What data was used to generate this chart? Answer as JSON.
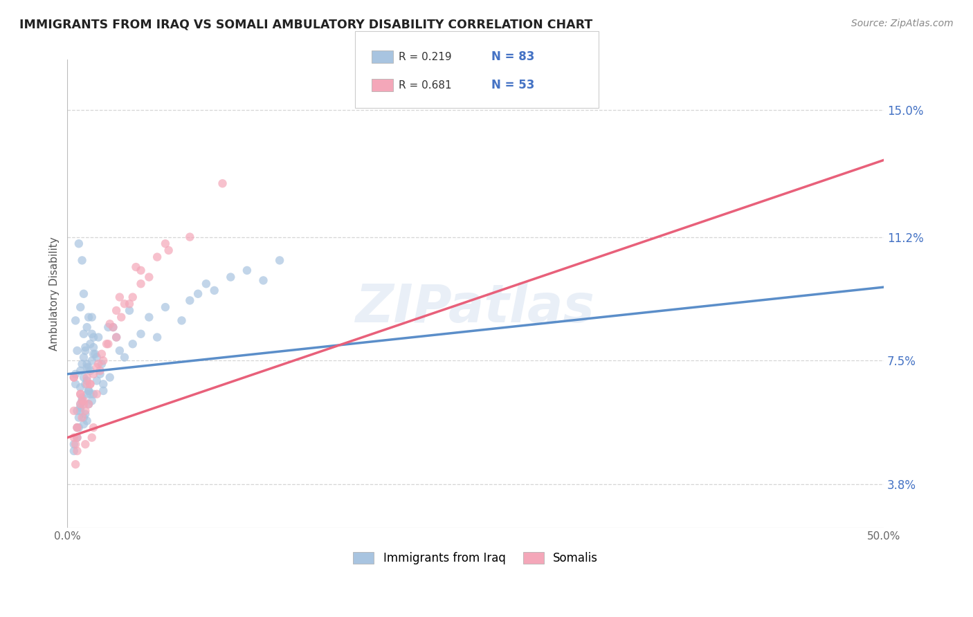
{
  "title": "IMMIGRANTS FROM IRAQ VS SOMALI AMBULATORY DISABILITY CORRELATION CHART",
  "source_text": "Source: ZipAtlas.com",
  "ylabel": "Ambulatory Disability",
  "xlim": [
    0.0,
    0.5
  ],
  "ylim": [
    0.025,
    0.165
  ],
  "ytick_values": [
    0.038,
    0.075,
    0.112,
    0.15
  ],
  "ytick_labels": [
    "3.8%",
    "7.5%",
    "11.2%",
    "15.0%"
  ],
  "iraq_color": "#a8c4e0",
  "somali_color": "#f4a7b9",
  "iraq_line_color": "#5b8ec9",
  "somali_line_color": "#e8607a",
  "iraq_R": 0.219,
  "iraq_N": 83,
  "somali_R": 0.681,
  "somali_N": 53,
  "background_color": "#ffffff",
  "grid_color": "#cccccc",
  "watermark_text": "ZIPatlas",
  "iraq_scatter_x": [
    0.005,
    0.008,
    0.01,
    0.012,
    0.015,
    0.008,
    0.006,
    0.01,
    0.012,
    0.014,
    0.007,
    0.009,
    0.011,
    0.013,
    0.016,
    0.018,
    0.01,
    0.007,
    0.005,
    0.012,
    0.015,
    0.009,
    0.011,
    0.013,
    0.008,
    0.014,
    0.006,
    0.01,
    0.012,
    0.016,
    0.007,
    0.005,
    0.009,
    0.013,
    0.011,
    0.008,
    0.02,
    0.015,
    0.018,
    0.022,
    0.019,
    0.012,
    0.017,
    0.014,
    0.025,
    0.016,
    0.013,
    0.021,
    0.03,
    0.035,
    0.04,
    0.028,
    0.045,
    0.038,
    0.032,
    0.05,
    0.055,
    0.06,
    0.07,
    0.08,
    0.09,
    0.075,
    0.1,
    0.085,
    0.11,
    0.12,
    0.13,
    0.004,
    0.006,
    0.008,
    0.01,
    0.006,
    0.009,
    0.004,
    0.011,
    0.013,
    0.01,
    0.008,
    0.015,
    0.012,
    0.016,
    0.022,
    0.026
  ],
  "iraq_scatter_y": [
    0.068,
    0.072,
    0.095,
    0.085,
    0.075,
    0.062,
    0.078,
    0.07,
    0.065,
    0.08,
    0.11,
    0.105,
    0.068,
    0.073,
    0.082,
    0.069,
    0.076,
    0.058,
    0.071,
    0.074,
    0.088,
    0.063,
    0.078,
    0.066,
    0.091,
    0.072,
    0.06,
    0.083,
    0.069,
    0.077,
    0.055,
    0.087,
    0.074,
    0.066,
    0.079,
    0.061,
    0.071,
    0.083,
    0.076,
    0.068,
    0.082,
    0.073,
    0.077,
    0.065,
    0.085,
    0.079,
    0.088,
    0.074,
    0.082,
    0.076,
    0.08,
    0.085,
    0.083,
    0.09,
    0.078,
    0.088,
    0.082,
    0.091,
    0.087,
    0.095,
    0.096,
    0.093,
    0.1,
    0.098,
    0.102,
    0.099,
    0.105,
    0.05,
    0.055,
    0.06,
    0.058,
    0.052,
    0.064,
    0.048,
    0.059,
    0.062,
    0.056,
    0.067,
    0.063,
    0.057,
    0.065,
    0.066,
    0.07
  ],
  "somali_scatter_x": [
    0.004,
    0.006,
    0.008,
    0.004,
    0.01,
    0.006,
    0.008,
    0.012,
    0.005,
    0.011,
    0.004,
    0.009,
    0.015,
    0.006,
    0.011,
    0.008,
    0.013,
    0.005,
    0.004,
    0.01,
    0.016,
    0.009,
    0.014,
    0.018,
    0.012,
    0.006,
    0.02,
    0.014,
    0.016,
    0.022,
    0.018,
    0.025,
    0.021,
    0.03,
    0.024,
    0.028,
    0.033,
    0.038,
    0.03,
    0.04,
    0.045,
    0.05,
    0.055,
    0.062,
    0.045,
    0.035,
    0.026,
    0.019,
    0.075,
    0.06,
    0.042,
    0.032,
    0.095
  ],
  "somali_scatter_y": [
    0.06,
    0.055,
    0.062,
    0.052,
    0.063,
    0.048,
    0.065,
    0.068,
    0.044,
    0.05,
    0.07,
    0.058,
    0.052,
    0.055,
    0.06,
    0.065,
    0.062,
    0.05,
    0.07,
    0.062,
    0.055,
    0.063,
    0.068,
    0.065,
    0.07,
    0.052,
    0.072,
    0.068,
    0.071,
    0.075,
    0.073,
    0.08,
    0.077,
    0.082,
    0.08,
    0.085,
    0.088,
    0.092,
    0.09,
    0.094,
    0.098,
    0.1,
    0.106,
    0.108,
    0.102,
    0.092,
    0.086,
    0.074,
    0.112,
    0.11,
    0.103,
    0.094,
    0.128
  ],
  "iraq_trend_x0": 0.0,
  "iraq_trend_x1": 0.5,
  "iraq_trend_y0": 0.071,
  "iraq_trend_y1": 0.097,
  "somali_trend_x0": 0.0,
  "somali_trend_x1": 0.5,
  "somali_trend_y0": 0.052,
  "somali_trend_y1": 0.135
}
